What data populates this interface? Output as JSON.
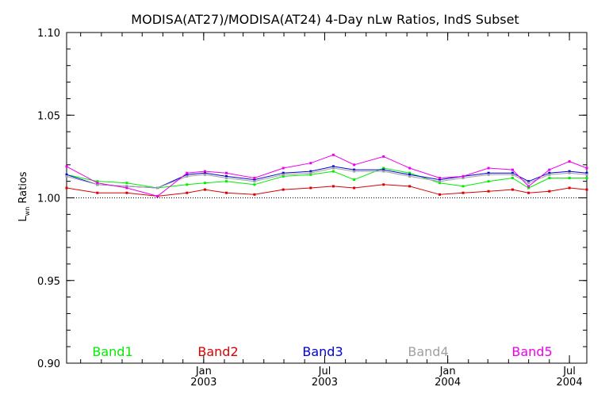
{
  "chart_data": {
    "type": "line",
    "title": "MODISA(AT27)/MODISA(AT24) 4-Day nLw Ratios, IndS Subset",
    "ylabel": "L",
    "ylabel_sub": "wn",
    "ylabel_suffix": " Ratios",
    "xlabel": "",
    "ylim": [
      0.9,
      1.1
    ],
    "xlim": [
      "2002-06-10",
      "2004-07-27"
    ],
    "yticks": [
      "0.90",
      "0.95",
      "1.00",
      "1.05",
      "1.10"
    ],
    "xticks": [
      {
        "date": "2003-01-01",
        "month": "Jan",
        "year": "2003"
      },
      {
        "date": "2003-07-01",
        "month": "Jul",
        "year": "2003"
      },
      {
        "date": "2004-01-01",
        "month": "Jan",
        "year": "2004"
      },
      {
        "date": "2004-07-01",
        "month": "Jul",
        "year": "2004"
      }
    ],
    "reference_line": 1.0,
    "x": [
      "2002-06-10",
      "2002-07-26",
      "2002-09-08",
      "2002-10-24",
      "2002-12-07",
      "2003-01-03",
      "2003-02-04",
      "2003-03-18",
      "2003-04-30",
      "2003-06-10",
      "2003-07-14",
      "2003-08-14",
      "2003-09-27",
      "2003-11-05",
      "2003-12-20",
      "2004-01-24",
      "2004-03-02",
      "2004-04-07",
      "2004-05-01",
      "2004-06-01",
      "2004-07-01",
      "2004-07-27"
    ],
    "series": [
      {
        "name": "Band1",
        "color": "#00ee00",
        "values": [
          1.014,
          1.01,
          1.009,
          1.006,
          1.008,
          1.009,
          1.01,
          1.008,
          1.013,
          1.014,
          1.016,
          1.011,
          1.018,
          1.015,
          1.009,
          1.007,
          1.01,
          1.012,
          1.006,
          1.012,
          1.012,
          1.012
        ]
      },
      {
        "name": "Band2",
        "color": "#dd0000",
        "values": [
          1.006,
          1.003,
          1.003,
          1.001,
          1.003,
          1.005,
          1.003,
          1.002,
          1.005,
          1.006,
          1.007,
          1.006,
          1.008,
          1.007,
          1.002,
          1.003,
          1.004,
          1.005,
          1.003,
          1.004,
          1.006,
          1.005
        ]
      },
      {
        "name": "Band3",
        "color": "#0000dd",
        "values": [
          1.014,
          1.008,
          1.007,
          1.006,
          1.014,
          1.015,
          1.013,
          1.011,
          1.015,
          1.016,
          1.019,
          1.017,
          1.017,
          1.014,
          1.011,
          1.013,
          1.015,
          1.015,
          1.01,
          1.015,
          1.016,
          1.015
        ]
      },
      {
        "name": "Band4",
        "color": "#a0a0a0",
        "values": [
          1.013,
          1.008,
          1.007,
          1.006,
          1.013,
          1.014,
          1.012,
          1.01,
          1.014,
          1.015,
          1.018,
          1.016,
          1.016,
          1.013,
          1.01,
          1.012,
          1.014,
          1.014,
          1.009,
          1.014,
          1.015,
          1.014
        ]
      },
      {
        "name": "Band5",
        "color": "#ee00ee",
        "values": [
          1.019,
          1.009,
          1.006,
          1.001,
          1.015,
          1.016,
          1.015,
          1.012,
          1.018,
          1.021,
          1.026,
          1.02,
          1.025,
          1.018,
          1.012,
          1.013,
          1.018,
          1.017,
          1.007,
          1.017,
          1.022,
          1.018
        ]
      }
    ],
    "legend_placement": "bottom inside plot"
  }
}
